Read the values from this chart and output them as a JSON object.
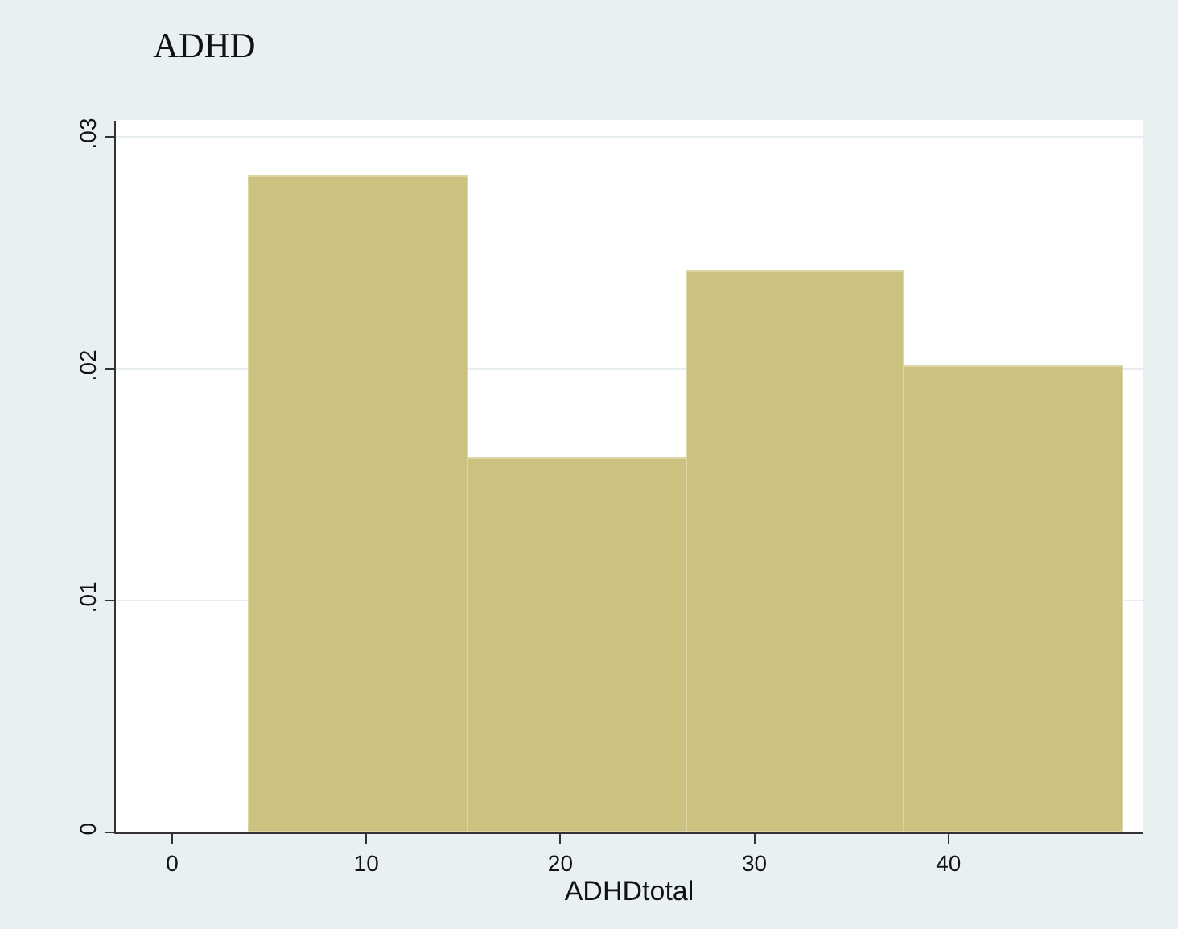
{
  "chart_data": {
    "type": "histogram",
    "title": "ADHD",
    "xlabel": "ADHDtotal",
    "bins": [
      4,
      15.25,
      26.5,
      37.75,
      49
    ],
    "values": [
      0.0283,
      0.0161,
      0.0242,
      0.0201
    ],
    "color": "#cbc281",
    "xlim": [
      -2.9,
      50
    ],
    "xticks": [
      0,
      10,
      20,
      30,
      40
    ],
    "ylim": [
      0,
      0.0307
    ],
    "yticks": [
      0,
      {
        "value": 0.01,
        "label": ".01"
      },
      {
        "value": 0.02,
        "label": ".02"
      },
      {
        "value": 0.03,
        "label": ".03"
      }
    ],
    "grid": "y"
  }
}
